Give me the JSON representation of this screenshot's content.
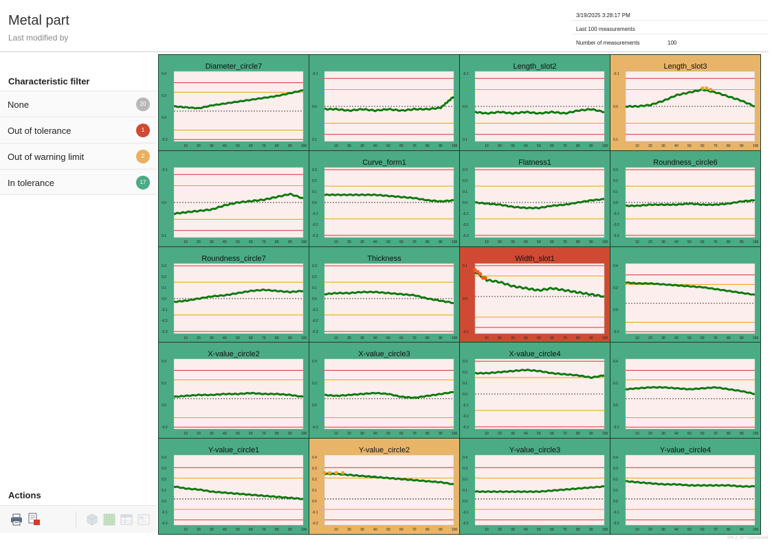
{
  "header": {
    "title": "Metal part",
    "subtitle": "Last modified  by",
    "info": [
      {
        "label": "3/19/2025 3:28:17 PM",
        "value": ""
      },
      {
        "label": "Last 100 measurements",
        "value": ""
      },
      {
        "label": "Number of measurements",
        "value": "100"
      }
    ]
  },
  "sidebar": {
    "filter_title": "Characteristic filter",
    "filters": [
      {
        "label": "None",
        "count": "20",
        "color": "#b8b8b8"
      },
      {
        "label": "Out of tolerance",
        "count": "1",
        "color": "#d04a33"
      },
      {
        "label": "Out of warning limit",
        "count": "2",
        "color": "#e8b060"
      },
      {
        "label": "In tolerance",
        "count": "17",
        "color": "#4aab84"
      }
    ],
    "actions_title": "Actions",
    "actions": [
      {
        "icon": "printer-icon"
      },
      {
        "icon": "pdf-export-icon"
      },
      {
        "icon": "cube-icon"
      },
      {
        "icon": "grid-icon"
      },
      {
        "icon": "table-icon"
      },
      {
        "icon": "report-icon"
      }
    ]
  },
  "footer_note": "IPS 2_20 / Dashboard",
  "colors": {
    "in_tolerance": "#4aab84",
    "warning": "#e8b468",
    "out_of_tolerance": "#d04a33",
    "plot_bg": "#fdeeee",
    "upper_lower_limit": "#d93030",
    "warning_limit": "#e6a300",
    "data_line": "#0f7a0f"
  },
  "chart_data": [
    {
      "type": "line",
      "title": "Diameter_circle7",
      "status": "in",
      "yticks": [
        "0.4",
        "0.2",
        "0.0",
        "-0.2"
      ],
      "xticks": [
        "10",
        "20",
        "30",
        "40",
        "50",
        "60",
        "70",
        "80",
        "90",
        "100"
      ],
      "ylim": [
        -0.32,
        0.42
      ],
      "limits": [
        0.3,
        -0.3
      ],
      "warnings": [
        0.2,
        -0.2
      ],
      "nominal": 0.0,
      "x": [
        1,
        10,
        20,
        30,
        40,
        50,
        60,
        70,
        80,
        90,
        100
      ],
      "y": [
        0.05,
        0.04,
        0.03,
        0.06,
        0.08,
        0.1,
        0.12,
        0.14,
        0.16,
        0.19,
        0.22
      ]
    },
    {
      "type": "line",
      "title": "",
      "status": "in",
      "yticks": [
        "-0.1",
        "0.0",
        "0.1"
      ],
      "xticks": [
        "10",
        "20",
        "30",
        "40",
        "50",
        "60",
        "70",
        "80",
        "90",
        "100"
      ],
      "ylim": [
        -0.25,
        0.25
      ],
      "limits": [
        0.2,
        -0.2
      ],
      "warnings": [
        0.12,
        -0.12
      ],
      "nominal": 0.0,
      "x": [
        1,
        10,
        20,
        30,
        40,
        50,
        60,
        70,
        80,
        90,
        95,
        100
      ],
      "y": [
        -0.02,
        -0.02,
        -0.03,
        -0.02,
        -0.03,
        -0.02,
        -0.03,
        -0.02,
        -0.02,
        -0.01,
        0.03,
        0.07
      ]
    },
    {
      "type": "line",
      "title": "Length_slot2",
      "status": "in",
      "yticks": [
        "-0.1",
        "0.0",
        "0.1"
      ],
      "xticks": [
        "10",
        "20",
        "30",
        "40",
        "50",
        "60",
        "70",
        "80",
        "90",
        "100"
      ],
      "ylim": [
        -0.25,
        0.25
      ],
      "limits": [
        0.2,
        -0.2
      ],
      "warnings": [
        0.12,
        -0.12
      ],
      "nominal": 0.0,
      "x": [
        1,
        10,
        20,
        30,
        40,
        50,
        60,
        70,
        80,
        90,
        100
      ],
      "y": [
        -0.04,
        -0.05,
        -0.04,
        -0.05,
        -0.04,
        -0.05,
        -0.04,
        -0.05,
        -0.03,
        -0.02,
        -0.04
      ]
    },
    {
      "type": "line",
      "title": "Length_slot3",
      "status": "warn",
      "yticks": [
        "-0.1",
        "0.0",
        "0.1"
      ],
      "xticks": [
        "10",
        "20",
        "30",
        "40",
        "50",
        "60",
        "70",
        "80",
        "90",
        "100"
      ],
      "ylim": [
        -0.25,
        0.25
      ],
      "limits": [
        0.2,
        -0.2
      ],
      "warnings": [
        0.12,
        -0.12
      ],
      "nominal": 0.0,
      "x": [
        1,
        10,
        20,
        30,
        40,
        50,
        60,
        70,
        80,
        90,
        100
      ],
      "y": [
        0.0,
        0.0,
        0.01,
        0.04,
        0.08,
        0.1,
        0.12,
        0.1,
        0.07,
        0.04,
        0.0
      ],
      "out_points": [
        [
          60,
          0.13
        ],
        [
          63,
          0.13
        ],
        [
          66,
          0.12
        ]
      ]
    },
    {
      "type": "line",
      "title": "",
      "status": "in",
      "yticks": [
        "-0.1",
        "0.0",
        "0.1"
      ],
      "xticks": [
        "10",
        "20",
        "30",
        "40",
        "50",
        "60",
        "70",
        "80",
        "90",
        "100"
      ],
      "ylim": [
        -0.25,
        0.25
      ],
      "limits": [
        0.2,
        -0.2
      ],
      "warnings": [
        0.12,
        -0.12
      ],
      "nominal": 0.0,
      "x": [
        1,
        10,
        20,
        30,
        40,
        50,
        60,
        70,
        80,
        90,
        100
      ],
      "y": [
        -0.08,
        -0.07,
        -0.06,
        -0.05,
        -0.02,
        0.0,
        0.01,
        0.02,
        0.04,
        0.06,
        0.03
      ]
    },
    {
      "type": "line",
      "title": "Curve_form1",
      "status": "in",
      "yticks": [
        "0.3",
        "0.2",
        "0.1",
        "0.0",
        "-0.1",
        "-0.2",
        "-0.3"
      ],
      "xticks": [
        "10",
        "20",
        "30",
        "40",
        "50",
        "60",
        "70",
        "80",
        "90",
        "100"
      ],
      "ylim": [
        -0.32,
        0.32
      ],
      "limits": [
        0.3,
        -0.3
      ],
      "warnings": [
        0.15,
        -0.15
      ],
      "nominal": 0.0,
      "x": [
        1,
        10,
        20,
        30,
        40,
        50,
        60,
        70,
        80,
        90,
        100
      ],
      "y": [
        0.07,
        0.07,
        0.07,
        0.07,
        0.07,
        0.06,
        0.05,
        0.04,
        0.02,
        0.01,
        0.02
      ]
    },
    {
      "type": "line",
      "title": "Flatness1",
      "status": "in",
      "yticks": [
        "0.3",
        "0.2",
        "0.1",
        "0.0",
        "-0.1",
        "-0.2",
        "-0.3"
      ],
      "xticks": [
        "10",
        "20",
        "30",
        "40",
        "50",
        "60",
        "70",
        "80",
        "90",
        "100"
      ],
      "ylim": [
        -0.32,
        0.32
      ],
      "limits": [
        0.3,
        -0.3
      ],
      "warnings": [
        0.15,
        -0.15
      ],
      "nominal": 0.0,
      "x": [
        1,
        10,
        20,
        30,
        40,
        50,
        60,
        70,
        80,
        90,
        100
      ],
      "y": [
        0.0,
        -0.01,
        -0.02,
        -0.04,
        -0.05,
        -0.05,
        -0.03,
        -0.02,
        0.0,
        0.02,
        0.03
      ]
    },
    {
      "type": "line",
      "title": "Roundness_circle6",
      "status": "in",
      "yticks": [
        "0.3",
        "0.2",
        "0.1",
        "0.0",
        "-0.1",
        "-0.2",
        "-0.3"
      ],
      "xticks": [
        "10",
        "20",
        "30",
        "40",
        "50",
        "60",
        "70",
        "80",
        "90",
        "100"
      ],
      "ylim": [
        -0.32,
        0.32
      ],
      "limits": [
        0.3,
        -0.3
      ],
      "warnings": [
        0.15,
        -0.15
      ],
      "nominal": 0.0,
      "x": [
        1,
        10,
        20,
        30,
        40,
        50,
        60,
        70,
        80,
        90,
        100
      ],
      "y": [
        -0.03,
        -0.03,
        -0.02,
        -0.02,
        -0.02,
        -0.01,
        -0.02,
        -0.02,
        -0.01,
        0.01,
        0.02
      ]
    },
    {
      "type": "line",
      "title": "Roundness_circle7",
      "status": "in",
      "yticks": [
        "0.3",
        "0.2",
        "0.1",
        "0.0",
        "-0.1",
        "-0.2",
        "-0.3"
      ],
      "xticks": [
        "10",
        "20",
        "30",
        "40",
        "50",
        "60",
        "70",
        "80",
        "90",
        "100"
      ],
      "ylim": [
        -0.32,
        0.32
      ],
      "limits": [
        0.3,
        -0.3
      ],
      "warnings": [
        0.15,
        -0.15
      ],
      "nominal": 0.0,
      "x": [
        1,
        10,
        20,
        30,
        40,
        50,
        60,
        70,
        80,
        90,
        100
      ],
      "y": [
        -0.03,
        -0.02,
        0.0,
        0.02,
        0.03,
        0.05,
        0.07,
        0.08,
        0.07,
        0.06,
        0.07
      ]
    },
    {
      "type": "line",
      "title": "Thickness",
      "status": "in",
      "yticks": [
        "0.3",
        "0.2",
        "0.1",
        "0.0",
        "-0.1",
        "-0.2",
        "-0.3"
      ],
      "xticks": [
        "10",
        "20",
        "30",
        "40",
        "50",
        "60",
        "70",
        "80",
        "90",
        "100"
      ],
      "ylim": [
        -0.32,
        0.32
      ],
      "limits": [
        0.3,
        -0.3
      ],
      "warnings": [
        0.15,
        -0.15
      ],
      "nominal": 0.0,
      "x": [
        1,
        10,
        20,
        30,
        40,
        50,
        60,
        70,
        80,
        90,
        100
      ],
      "y": [
        0.04,
        0.05,
        0.05,
        0.06,
        0.06,
        0.05,
        0.04,
        0.03,
        0.0,
        -0.02,
        -0.04
      ]
    },
    {
      "type": "line",
      "title": "Width_slot1",
      "status": "out",
      "yticks": [
        "0.1",
        "0.0",
        "-0.1"
      ],
      "xticks": [
        "10",
        "20",
        "30",
        "40",
        "50",
        "60",
        "70",
        "80",
        "90",
        "100"
      ],
      "ylim": [
        -0.18,
        0.16
      ],
      "limits": [
        0.15,
        -0.15
      ],
      "warnings": [
        0.1,
        -0.1
      ],
      "nominal": 0.0,
      "x": [
        1,
        10,
        20,
        30,
        40,
        50,
        60,
        70,
        80,
        90,
        100
      ],
      "y": [
        0.12,
        0.08,
        0.07,
        0.05,
        0.04,
        0.03,
        0.04,
        0.03,
        0.02,
        0.01,
        0.0
      ],
      "out_points": [
        [
          1,
          0.13
        ],
        [
          3,
          0.12
        ],
        [
          5,
          0.11
        ],
        [
          7,
          0.09
        ],
        [
          9,
          0.09
        ]
      ]
    },
    {
      "type": "line",
      "title": "",
      "status": "in",
      "yticks": [
        "0.4",
        "0.2",
        "0.0",
        "-0.2"
      ],
      "xticks": [
        "10",
        "20",
        "30",
        "40",
        "50",
        "60",
        "70",
        "80",
        "90",
        "100"
      ],
      "ylim": [
        -0.32,
        0.42
      ],
      "limits": [
        0.3,
        -0.3
      ],
      "warnings": [
        0.2,
        -0.2
      ],
      "nominal": 0.0,
      "x": [
        1,
        10,
        20,
        30,
        40,
        50,
        60,
        70,
        80,
        90,
        100
      ],
      "y": [
        0.22,
        0.21,
        0.21,
        0.2,
        0.19,
        0.18,
        0.17,
        0.15,
        0.13,
        0.11,
        0.09
      ]
    },
    {
      "type": "line",
      "title": "X-value_circle2",
      "status": "in",
      "yticks": [
        "0.4",
        "0.2",
        "0.0",
        "-0.2"
      ],
      "xticks": [
        "10",
        "20",
        "30",
        "40",
        "50",
        "60",
        "70",
        "80",
        "90",
        "100"
      ],
      "ylim": [
        -0.32,
        0.42
      ],
      "limits": [
        0.3,
        -0.3
      ],
      "warnings": [
        0.2,
        -0.2
      ],
      "nominal": 0.0,
      "x": [
        1,
        10,
        20,
        30,
        40,
        50,
        60,
        70,
        80,
        90,
        100
      ],
      "y": [
        0.02,
        0.03,
        0.04,
        0.04,
        0.05,
        0.05,
        0.06,
        0.05,
        0.05,
        0.04,
        0.02
      ]
    },
    {
      "type": "line",
      "title": "X-value_circle3",
      "status": "in",
      "yticks": [
        "0.4",
        "0.2",
        "0.0",
        "-0.2"
      ],
      "xticks": [
        "10",
        "20",
        "30",
        "40",
        "50",
        "60",
        "70",
        "80",
        "90",
        "100"
      ],
      "ylim": [
        -0.32,
        0.42
      ],
      "limits": [
        0.3,
        -0.3
      ],
      "warnings": [
        0.2,
        -0.2
      ],
      "nominal": 0.0,
      "x": [
        1,
        10,
        20,
        30,
        40,
        50,
        60,
        70,
        80,
        90,
        100
      ],
      "y": [
        0.04,
        0.03,
        0.04,
        0.05,
        0.06,
        0.05,
        0.02,
        0.01,
        0.03,
        0.05,
        0.07
      ]
    },
    {
      "type": "line",
      "title": "X-value_circle4",
      "status": "in",
      "yticks": [
        "0.3",
        "0.2",
        "0.1",
        "0.0",
        "-0.1",
        "-0.2",
        "-0.3"
      ],
      "xticks": [
        "10",
        "20",
        "30",
        "40",
        "50",
        "60",
        "70",
        "80",
        "90",
        "100"
      ],
      "ylim": [
        -0.32,
        0.32
      ],
      "limits": [
        0.3,
        -0.3
      ],
      "warnings": [
        0.15,
        -0.15
      ],
      "nominal": 0.0,
      "x": [
        1,
        10,
        20,
        30,
        40,
        50,
        60,
        70,
        80,
        90,
        100
      ],
      "y": [
        0.19,
        0.19,
        0.2,
        0.21,
        0.22,
        0.21,
        0.19,
        0.18,
        0.17,
        0.15,
        0.17
      ]
    },
    {
      "type": "line",
      "title": "",
      "status": "in",
      "yticks": [
        "0.4",
        "0.2",
        "0.0",
        "-0.2"
      ],
      "xticks": [
        "10",
        "20",
        "30",
        "40",
        "50",
        "60",
        "70",
        "80",
        "90",
        "100"
      ],
      "ylim": [
        -0.32,
        0.42
      ],
      "limits": [
        0.3,
        -0.3
      ],
      "warnings": [
        0.2,
        -0.2
      ],
      "nominal": 0.0,
      "x": [
        1,
        10,
        20,
        30,
        40,
        50,
        60,
        70,
        80,
        90,
        100
      ],
      "y": [
        0.1,
        0.11,
        0.12,
        0.12,
        0.11,
        0.1,
        0.11,
        0.12,
        0.1,
        0.08,
        0.05
      ]
    },
    {
      "type": "line",
      "title": "Y-value_circle1",
      "status": "in",
      "yticks": [
        "0.4",
        "0.3",
        "0.2",
        "0.1",
        "0.0",
        "-0.1",
        "-0.2"
      ],
      "xticks": [
        "10",
        "20",
        "30",
        "40",
        "50",
        "60",
        "70",
        "80",
        "90",
        "100"
      ],
      "ylim": [
        -0.25,
        0.42
      ],
      "limits": [
        0.3,
        -0.2
      ],
      "warnings": [
        0.2,
        -0.1
      ],
      "nominal": 0.0,
      "x": [
        1,
        10,
        20,
        30,
        40,
        50,
        60,
        70,
        80,
        90,
        100
      ],
      "y": [
        0.12,
        0.1,
        0.09,
        0.07,
        0.06,
        0.05,
        0.04,
        0.03,
        0.02,
        0.01,
        0.0
      ]
    },
    {
      "type": "line",
      "title": "Y-value_circle2",
      "status": "warn",
      "yticks": [
        "0.4",
        "0.3",
        "0.2",
        "0.1",
        "0.0",
        "-0.1",
        "-0.2"
      ],
      "xticks": [
        "10",
        "20",
        "30",
        "40",
        "50",
        "60",
        "70",
        "80",
        "90",
        "100"
      ],
      "ylim": [
        -0.25,
        0.42
      ],
      "limits": [
        0.3,
        -0.2
      ],
      "warnings": [
        0.2,
        -0.1
      ],
      "nominal": 0.0,
      "x": [
        1,
        10,
        20,
        30,
        40,
        50,
        60,
        70,
        80,
        90,
        100
      ],
      "y": [
        0.24,
        0.24,
        0.23,
        0.22,
        0.21,
        0.2,
        0.19,
        0.18,
        0.17,
        0.16,
        0.14
      ],
      "out_points": [
        [
          1,
          0.25
        ],
        [
          5,
          0.25
        ],
        [
          10,
          0.25
        ],
        [
          15,
          0.25
        ]
      ]
    },
    {
      "type": "line",
      "title": "Y-value_circle3",
      "status": "in",
      "yticks": [
        "0.4",
        "0.3",
        "0.2",
        "0.1",
        "0.0",
        "-0.1",
        "-0.2"
      ],
      "xticks": [
        "10",
        "20",
        "30",
        "40",
        "50",
        "60",
        "70",
        "80",
        "90",
        "100"
      ],
      "ylim": [
        -0.25,
        0.42
      ],
      "limits": [
        0.3,
        -0.2
      ],
      "warnings": [
        0.2,
        -0.1
      ],
      "nominal": 0.0,
      "x": [
        1,
        10,
        20,
        30,
        40,
        50,
        60,
        70,
        80,
        90,
        100
      ],
      "y": [
        0.07,
        0.07,
        0.07,
        0.07,
        0.07,
        0.07,
        0.08,
        0.09,
        0.1,
        0.11,
        0.12
      ]
    },
    {
      "type": "line",
      "title": "Y-value_circle4",
      "status": "in",
      "yticks": [
        "0.4",
        "0.3",
        "0.2",
        "0.1",
        "0.0",
        "-0.1",
        "-0.2"
      ],
      "xticks": [
        "10",
        "20",
        "30",
        "40",
        "50",
        "60",
        "70",
        "80",
        "90",
        "100"
      ],
      "ylim": [
        -0.25,
        0.42
      ],
      "limits": [
        0.3,
        -0.2
      ],
      "warnings": [
        0.2,
        -0.1
      ],
      "nominal": 0.0,
      "x": [
        1,
        10,
        20,
        30,
        40,
        50,
        60,
        70,
        80,
        90,
        100
      ],
      "y": [
        0.17,
        0.16,
        0.15,
        0.14,
        0.14,
        0.13,
        0.13,
        0.13,
        0.13,
        0.12,
        0.12
      ]
    }
  ]
}
